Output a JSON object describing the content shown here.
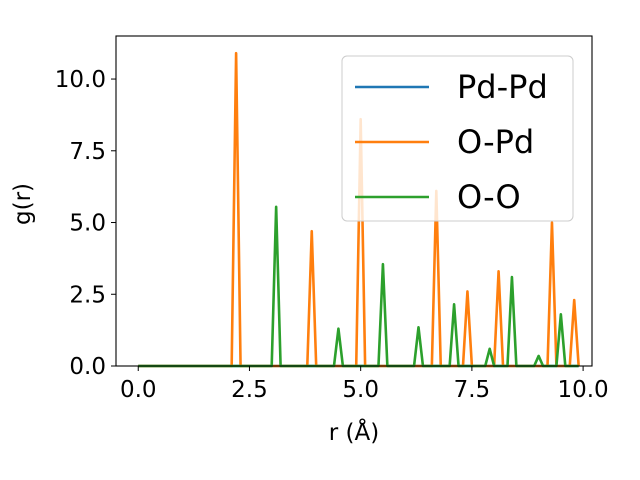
{
  "chart_data": {
    "type": "line",
    "xlabel": "r (Å)",
    "ylabel": "g(r)",
    "xlim": [
      -0.5,
      10.2
    ],
    "ylim": [
      0,
      11.5
    ],
    "xticks": [
      0.0,
      2.5,
      5.0,
      7.5,
      10.0
    ],
    "xtick_labels": [
      "0.0",
      "2.5",
      "5.0",
      "7.5",
      "10.0"
    ],
    "yticks": [
      0.0,
      2.5,
      5.0,
      7.5,
      10.0
    ],
    "ytick_labels": [
      "0.0",
      "2.5",
      "5.0",
      "7.5",
      "10.0"
    ],
    "grid": false,
    "legend_position": "upper-right",
    "series": [
      {
        "name": "Pd-Pd",
        "color": "#1f77b4",
        "points": [
          [
            0.0,
            0
          ],
          [
            9.9,
            0
          ]
        ]
      },
      {
        "name": "O-Pd",
        "color": "#ff7f0e",
        "points": [
          [
            0.0,
            0
          ],
          [
            2.1,
            0
          ],
          [
            2.2,
            10.9
          ],
          [
            2.3,
            0
          ],
          [
            3.8,
            0
          ],
          [
            3.9,
            4.7
          ],
          [
            4.0,
            0
          ],
          [
            4.9,
            0
          ],
          [
            5.0,
            8.6
          ],
          [
            5.1,
            0
          ],
          [
            6.6,
            0
          ],
          [
            6.7,
            6.1
          ],
          [
            6.8,
            0
          ],
          [
            7.3,
            0
          ],
          [
            7.4,
            2.6
          ],
          [
            7.5,
            0
          ],
          [
            8.0,
            0
          ],
          [
            8.1,
            3.3
          ],
          [
            8.2,
            0
          ],
          [
            9.2,
            0
          ],
          [
            9.3,
            5.0
          ],
          [
            9.4,
            0
          ],
          [
            9.7,
            0
          ],
          [
            9.8,
            2.3
          ],
          [
            9.9,
            0
          ]
        ]
      },
      {
        "name": "O-O",
        "color": "#2ca02c",
        "points": [
          [
            0.0,
            0
          ],
          [
            3.0,
            0
          ],
          [
            3.1,
            5.55
          ],
          [
            3.2,
            0
          ],
          [
            4.4,
            0
          ],
          [
            4.5,
            1.3
          ],
          [
            4.6,
            0
          ],
          [
            5.4,
            0
          ],
          [
            5.5,
            3.55
          ],
          [
            5.6,
            0
          ],
          [
            6.2,
            0
          ],
          [
            6.3,
            1.35
          ],
          [
            6.4,
            0
          ],
          [
            7.0,
            0
          ],
          [
            7.1,
            2.15
          ],
          [
            7.2,
            0
          ],
          [
            7.8,
            0
          ],
          [
            7.9,
            0.6
          ],
          [
            8.0,
            0
          ],
          [
            8.3,
            0
          ],
          [
            8.4,
            3.1
          ],
          [
            8.5,
            0
          ],
          [
            8.9,
            0
          ],
          [
            9.0,
            0.35
          ],
          [
            9.1,
            0
          ],
          [
            9.4,
            0
          ],
          [
            9.5,
            1.8
          ],
          [
            9.6,
            0
          ],
          [
            9.9,
            0
          ]
        ]
      }
    ]
  }
}
